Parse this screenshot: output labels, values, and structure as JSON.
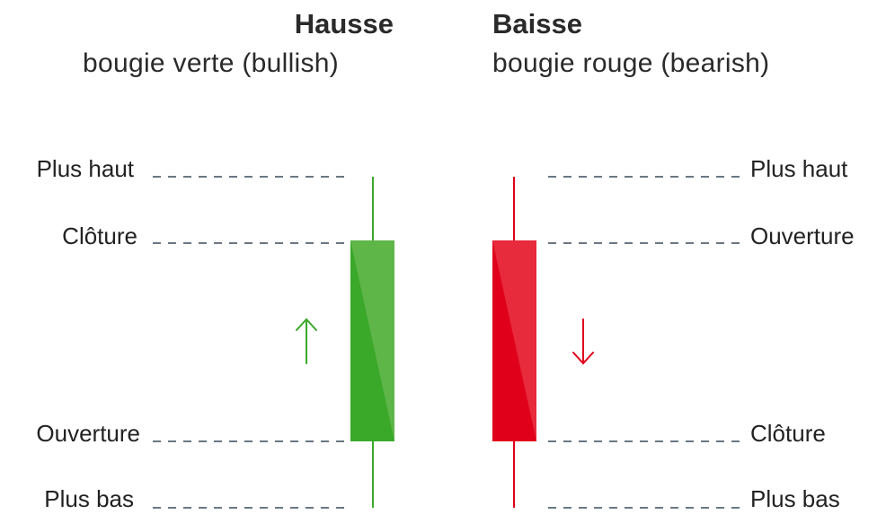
{
  "bullish": {
    "title": "Hausse",
    "subtitle": "bougie verte (bullish)",
    "labels": {
      "high": "Plus haut",
      "close": "Clôture",
      "open": "Ouverture",
      "low": "Plus bas"
    },
    "color": "#3aa829",
    "direction_icon": "arrow-up-icon"
  },
  "bearish": {
    "title": "Baisse",
    "subtitle": "bougie rouge (bearish)",
    "labels": {
      "high": "Plus haut",
      "open": "Ouverture",
      "close": "Clôture",
      "low": "Plus bas"
    },
    "color": "#e0001a",
    "direction_icon": "arrow-down-icon"
  },
  "colors": {
    "green_body": "#3aa829",
    "green_highlight": "#5eb548",
    "red_body": "#e0001a",
    "red_highlight": "#e72a3c",
    "dashed_line": "#3a4a5a",
    "text": "#222222"
  }
}
